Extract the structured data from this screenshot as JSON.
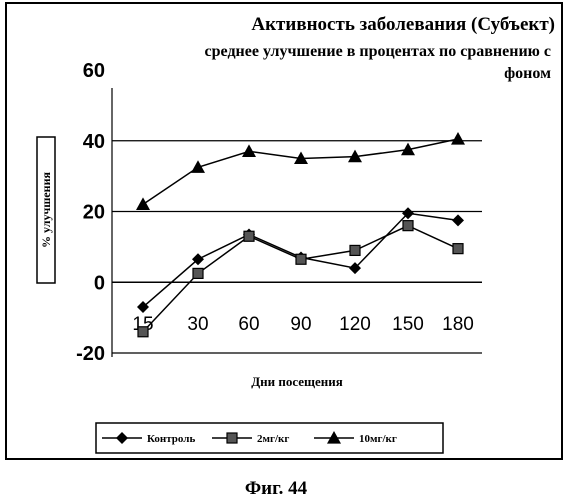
{
  "chart_data": {
    "type": "line",
    "title": "Активность заболевания (Субъект)",
    "subtitle_line1": "среднее улучшение в процентах по сравнению с",
    "subtitle_line2": "фоном",
    "xlabel": "Дни посещения",
    "ylabel": "% улучшения",
    "categories": [
      "15",
      "30",
      "60",
      "90",
      "120",
      "150",
      "180"
    ],
    "y_ticks": [
      "60",
      "40",
      "20",
      "0",
      "-20"
    ],
    "ylim": [
      -20,
      60
    ],
    "grid": "horizontal",
    "legend_position": "bottom",
    "series": [
      {
        "name": "Контроль",
        "marker": "diamond",
        "values": [
          -7,
          6.5,
          13.5,
          7,
          4,
          19.5,
          17.5
        ]
      },
      {
        "name": "2мг/кг",
        "marker": "square",
        "values": [
          -14,
          2.5,
          13,
          6.5,
          9,
          16,
          9.5
        ]
      },
      {
        "name": "10мг/кг",
        "marker": "triangle",
        "values": [
          22,
          32.5,
          37,
          35,
          35.5,
          37.5,
          40.5
        ]
      }
    ]
  },
  "caption": "Фиг. 44",
  "colors": {
    "ink": "#000000",
    "paper": "#ffffff"
  }
}
